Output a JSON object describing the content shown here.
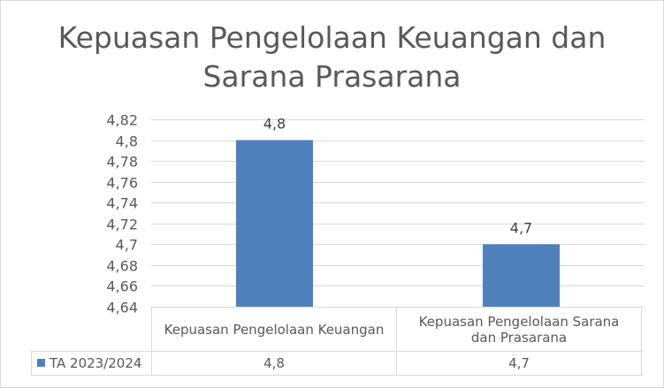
{
  "chart_data": {
    "type": "bar",
    "title_lines": [
      "Kepuasan Pengelolaan Keuangan dan",
      "Sarana Prasarana"
    ],
    "categories": [
      "Kepuasan Pengelolaan Keuangan",
      "Kepuasan Pengelolaan Sarana dan Prasarana"
    ],
    "category_lines": [
      [
        "Kepuasan Pengelolaan Keuangan"
      ],
      [
        "Kepuasan Pengelolaan Sarana",
        "dan Prasarana"
      ]
    ],
    "series": [
      {
        "name": "TA 2023/2024",
        "values": [
          4.8,
          4.7
        ],
        "value_labels": [
          "4,8",
          "4,7"
        ],
        "color": "#4f81bd"
      }
    ],
    "ylim": [
      4.64,
      4.82
    ],
    "yticks": [
      4.82,
      4.8,
      4.78,
      4.76,
      4.74,
      4.72,
      4.7,
      4.68,
      4.66,
      4.64
    ],
    "ytick_labels": [
      "4,82",
      "4,8",
      "4,78",
      "4,76",
      "4,74",
      "4,72",
      "4,7",
      "4,68",
      "4,66",
      "4,64"
    ],
    "grid": true,
    "legend": "data-table"
  }
}
